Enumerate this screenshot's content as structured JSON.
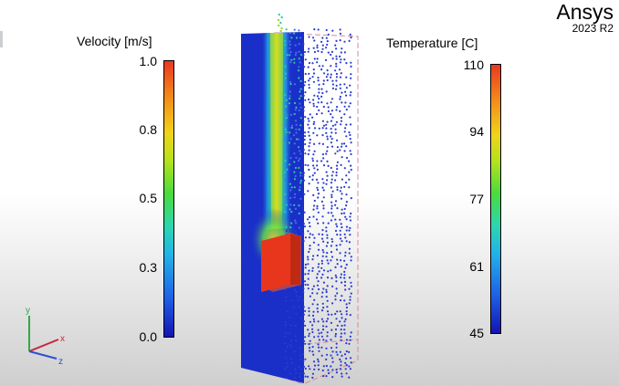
{
  "brand": {
    "name": "Ansys",
    "version": "2023 R2"
  },
  "velocity_legend": {
    "title": "Velocity [m/s]",
    "ticks": [
      "1.0",
      "0.8",
      "0.5",
      "0.3",
      "0.0"
    ]
  },
  "temperature_legend": {
    "title": "Temperature [C]",
    "ticks": [
      "110",
      "94",
      "77",
      "61",
      "45"
    ]
  },
  "triad": {
    "x_label": "x",
    "y_label": "y",
    "z_label": "z"
  },
  "colors": {
    "plane_blue": "#1a2fc8",
    "heater_red": "#e8361c",
    "domain_outline": "#d98a9a",
    "triad_x": "#c8283a",
    "triad_y": "#33a845",
    "triad_z": "#2f4fd0"
  }
}
